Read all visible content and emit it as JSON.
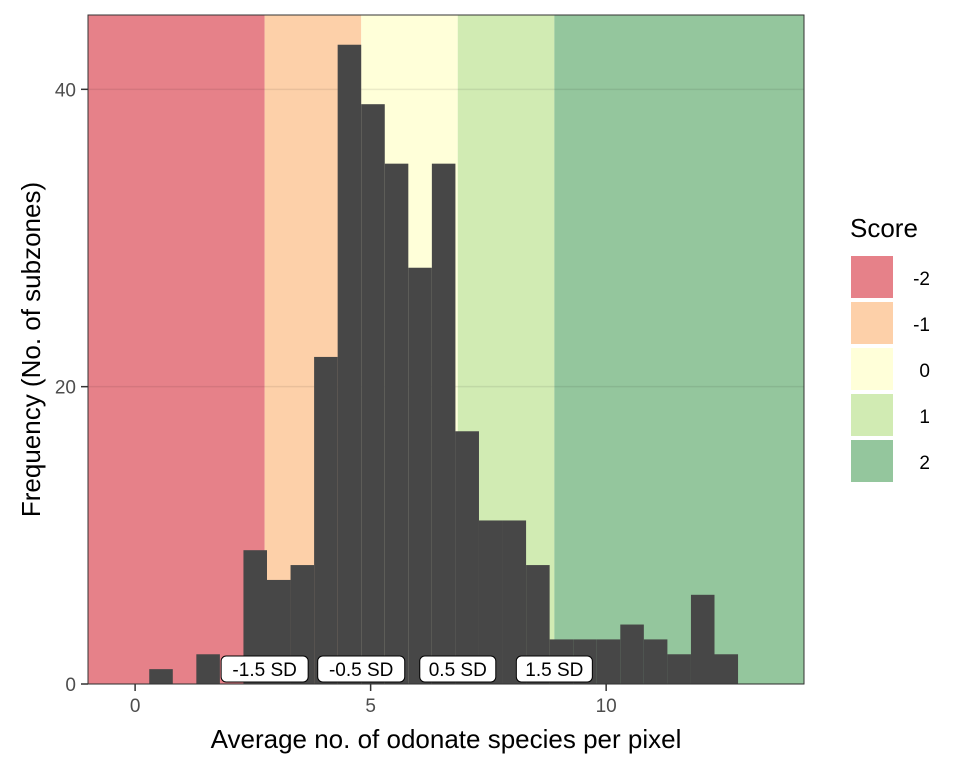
{
  "chart_data": {
    "type": "bar",
    "title": "",
    "xlabel": "Average no. of odonate species per pixel",
    "ylabel": "Frequency (No. of subzones)",
    "xlim": [
      -1,
      14.2
    ],
    "ylim": [
      0,
      45
    ],
    "x_ticks": [
      0,
      5,
      10
    ],
    "y_ticks": [
      0,
      20,
      40
    ],
    "grid": true,
    "bin_width": 0.5,
    "bars": [
      {
        "x0": 0.3,
        "x1": 0.8,
        "count": 1
      },
      {
        "x0": 1.3,
        "x1": 1.8,
        "count": 2
      },
      {
        "x0": 2.3,
        "x1": 2.8,
        "count": 9
      },
      {
        "x0": 2.8,
        "x1": 3.3,
        "count": 7
      },
      {
        "x0": 3.3,
        "x1": 3.8,
        "count": 8
      },
      {
        "x0": 3.8,
        "x1": 4.3,
        "count": 22
      },
      {
        "x0": 4.3,
        "x1": 4.8,
        "count": 43
      },
      {
        "x0": 4.8,
        "x1": 5.3,
        "count": 39
      },
      {
        "x0": 5.3,
        "x1": 5.8,
        "count": 35
      },
      {
        "x0": 5.8,
        "x1": 6.3,
        "count": 28
      },
      {
        "x0": 6.3,
        "x1": 6.8,
        "count": 35
      },
      {
        "x0": 6.8,
        "x1": 7.3,
        "count": 17
      },
      {
        "x0": 7.3,
        "x1": 7.8,
        "count": 11
      },
      {
        "x0": 7.8,
        "x1": 8.3,
        "count": 11
      },
      {
        "x0": 8.3,
        "x1": 8.8,
        "count": 8
      },
      {
        "x0": 8.8,
        "x1": 9.3,
        "count": 3
      },
      {
        "x0": 9.3,
        "x1": 9.8,
        "count": 3
      },
      {
        "x0": 9.8,
        "x1": 10.3,
        "count": 3
      },
      {
        "x0": 10.3,
        "x1": 10.8,
        "count": 4
      },
      {
        "x0": 10.8,
        "x1": 11.3,
        "count": 3
      },
      {
        "x0": 11.3,
        "x1": 11.8,
        "count": 2
      },
      {
        "x0": 11.8,
        "x1": 12.3,
        "count": 6
      },
      {
        "x0": 12.3,
        "x1": 12.8,
        "count": 2
      }
    ],
    "score_bands": [
      {
        "score": "-2",
        "x0": -1,
        "x1": 2.75,
        "color": "#e0616b"
      },
      {
        "score": "-1",
        "x0": 2.75,
        "x1": 4.8,
        "color": "#fdc494"
      },
      {
        "score": "0",
        "x0": 4.8,
        "x1": 6.85,
        "color": "#ffffd0"
      },
      {
        "score": "1",
        "x0": 6.85,
        "x1": 8.9,
        "color": "#c5e6a0"
      },
      {
        "score": "2",
        "x0": 8.9,
        "x1": 14.2,
        "color": "#79b885"
      }
    ],
    "sd_labels": [
      {
        "text": "-1.5 SD",
        "x": 2.75
      },
      {
        "text": "-0.5 SD",
        "x": 4.8
      },
      {
        "text": "0.5 SD",
        "x": 6.85
      },
      {
        "text": "1.5 SD",
        "x": 8.9
      }
    ],
    "legend": {
      "title": "Score",
      "placement": "right",
      "items": [
        "-2",
        "-1",
        "0",
        "1",
        "2"
      ]
    },
    "bar_color": "#474747"
  }
}
